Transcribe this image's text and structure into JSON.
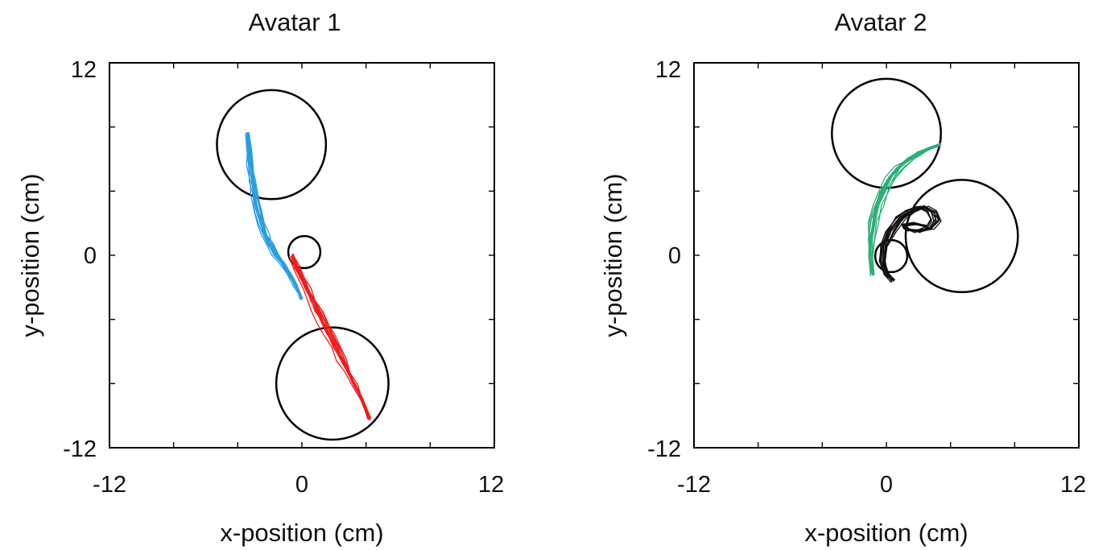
{
  "chart_data": [
    {
      "type": "line",
      "title": "Avatar 1",
      "xlabel": "x-position (cm)",
      "ylabel": "y-position (cm)",
      "xlim": [
        -12,
        12
      ],
      "ylim": [
        -12,
        12
      ],
      "xticks": [
        -12,
        -8,
        -4,
        0,
        4,
        8,
        12
      ],
      "yticks": [
        -12,
        -8,
        -4,
        0,
        4,
        8,
        12
      ],
      "xtick_labels": [
        "-12",
        "0",
        "12"
      ],
      "ytick_labels": [
        "12",
        "0",
        "-12"
      ],
      "grid": false,
      "legend": "none",
      "circles": [
        {
          "cx": -1.9,
          "cy": 6.9,
          "r": 3.4
        },
        {
          "cx": 0.15,
          "cy": 0.2,
          "r": 1.0
        },
        {
          "cx": 1.9,
          "cy": -8.0,
          "r": 3.5
        }
      ],
      "series": [
        {
          "color": "#2a9ddf",
          "trials": 14,
          "x": [
            -3.4,
            -3.3,
            -3.2,
            -3.05,
            -2.9,
            -2.7,
            -2.5,
            -2.25,
            -1.95,
            -1.6,
            -1.2,
            -0.8,
            -0.4,
            -0.05
          ],
          "y": [
            7.6,
            6.6,
            5.6,
            4.6,
            3.7,
            2.8,
            2.0,
            1.3,
            0.7,
            0.1,
            -0.5,
            -1.1,
            -1.8,
            -2.7
          ]
        },
        {
          "color": "#ee1c1c",
          "trials": 14,
          "x": [
            -0.6,
            -0.35,
            -0.05,
            0.3,
            0.65,
            1.0,
            1.35,
            1.7,
            2.1,
            2.5,
            2.9,
            3.3,
            3.75,
            4.2
          ],
          "y": [
            0.0,
            -0.7,
            -1.4,
            -2.1,
            -2.8,
            -3.5,
            -4.2,
            -4.9,
            -5.7,
            -6.5,
            -7.3,
            -8.1,
            -9.0,
            -10.2
          ]
        }
      ]
    },
    {
      "type": "line",
      "title": "Avatar 2",
      "xlabel": "x-position (cm)",
      "ylabel": "y-position (cm)",
      "xlim": [
        -12,
        12
      ],
      "ylim": [
        -12,
        12
      ],
      "xticks": [
        -12,
        -8,
        -4,
        0,
        4,
        8,
        12
      ],
      "yticks": [
        -12,
        -8,
        -4,
        0,
        4,
        8,
        12
      ],
      "xtick_labels": [
        "-12",
        "0",
        "12"
      ],
      "ytick_labels": [
        "12",
        "0",
        "-12"
      ],
      "grid": false,
      "legend": "none",
      "circles": [
        {
          "cx": 0.0,
          "cy": 7.6,
          "r": 3.4
        },
        {
          "cx": 0.3,
          "cy": -0.05,
          "r": 1.0
        },
        {
          "cx": 4.7,
          "cy": 1.2,
          "r": 3.5
        }
      ],
      "series": [
        {
          "color": "#2fae78",
          "trials": 14,
          "x": [
            -0.9,
            -1.0,
            -0.95,
            -0.8,
            -0.55,
            -0.2,
            0.25,
            0.8,
            1.45,
            2.1,
            2.75,
            3.3
          ],
          "y": [
            -1.2,
            -0.1,
            1.0,
            2.1,
            3.1,
            4.0,
            4.8,
            5.5,
            6.0,
            6.4,
            6.7,
            6.9
          ]
        },
        {
          "color": "#111111",
          "trials": 12,
          "x": [
            0.4,
            0.05,
            -0.2,
            -0.1,
            0.3,
            0.9,
            1.6,
            2.3,
            2.9,
            3.1,
            2.7,
            2.0,
            1.3,
            1.1,
            1.7,
            2.5
          ],
          "y": [
            -1.6,
            -1.2,
            -0.4,
            0.6,
            1.5,
            2.3,
            2.8,
            3.0,
            2.7,
            2.2,
            1.7,
            1.5,
            1.6,
            1.9,
            2.0,
            1.8
          ]
        }
      ]
    }
  ]
}
